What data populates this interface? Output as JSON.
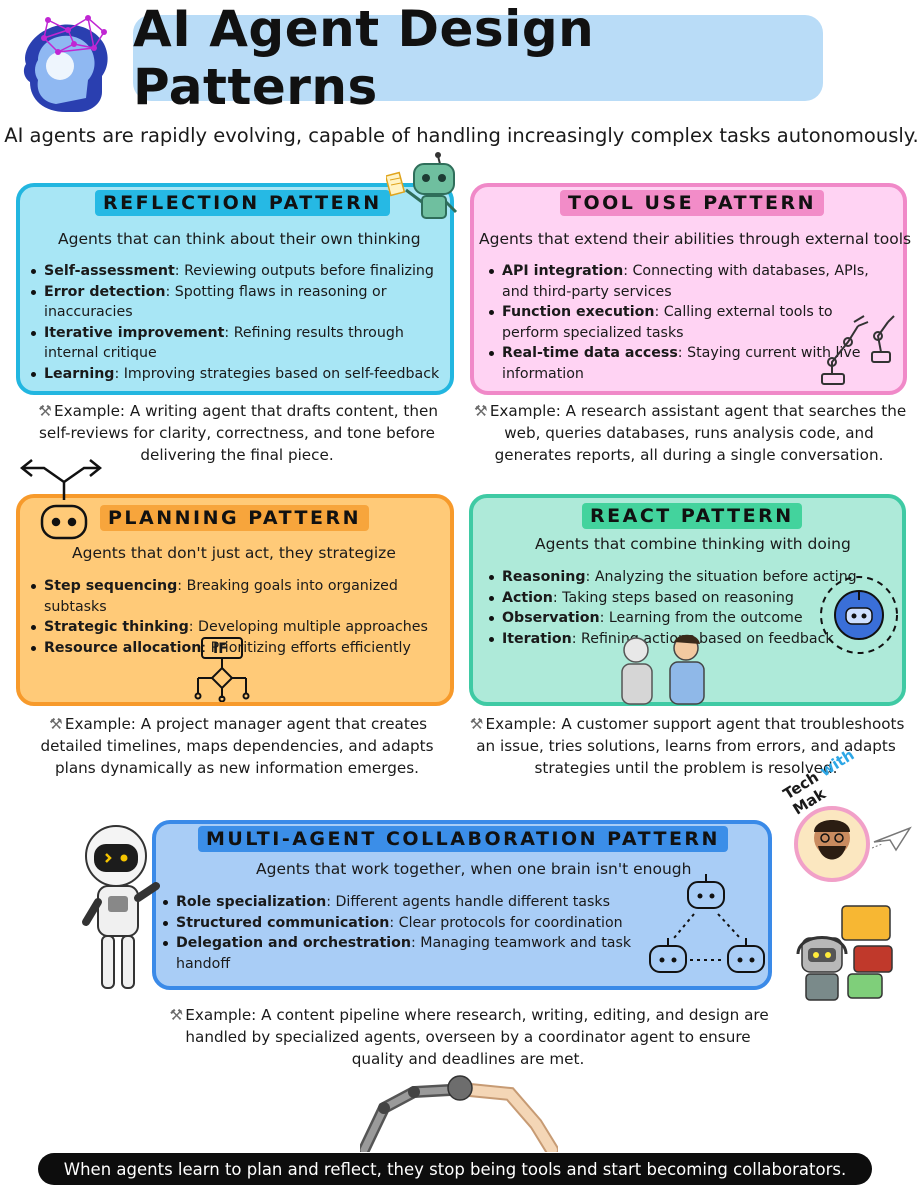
{
  "title": "AI Agent Design Patterns",
  "subtitle": "AI agents are rapidly evolving, capable of handling increasingly complex tasks autonomously.",
  "colors": {
    "title_bg": "#b9dcf7",
    "reflection": "#a8e6f5",
    "tool_use": "#ffd3f3",
    "planning": "#ffca78",
    "react": "#aeead9",
    "multi_agent": "#a9cdf6"
  },
  "reflection": {
    "label": "REFLECTION PATTERN",
    "tagline": "Agents that can think about their own thinking",
    "bullets": [
      {
        "term": "Self-assessment",
        "desc": ": Reviewing outputs before finalizing"
      },
      {
        "term": "Error detection",
        "desc": ": Spotting flaws in reasoning or inaccuracies"
      },
      {
        "term": "Iterative improvement",
        "desc": ": Refining results through internal critique"
      },
      {
        "term": "Learning",
        "desc": ": Improving strategies based on self-feedback"
      }
    ],
    "example": "Example: A writing agent that drafts content, then self-reviews for clarity, correctness, and tone before delivering the final piece."
  },
  "tool_use": {
    "label": "TOOL USE PATTERN",
    "tagline": "Agents that extend their abilities through external tools",
    "bullets": [
      {
        "term": "API integration",
        "desc": ": Connecting with databases, APIs, and third-party services"
      },
      {
        "term": "Function execution",
        "desc": ": Calling external tools to perform specialized tasks"
      },
      {
        "term": "Real-time data access",
        "desc": ": Staying current with live information"
      }
    ],
    "example": "Example: A research assistant agent that searches the web, queries databases, runs analysis code, and generates reports, all during a single conversation."
  },
  "planning": {
    "label": "PLANNING PATTERN",
    "tagline": "Agents that don't just act, they strategize",
    "bullets": [
      {
        "term": "Step sequencing",
        "desc": ": Breaking goals into organized subtasks"
      },
      {
        "term": "Strategic thinking",
        "desc": ": Developing multiple approaches"
      },
      {
        "term": "Resource allocation",
        "desc": ": Prioritizing efforts efficiently"
      }
    ],
    "if_label": "IF",
    "example": "Example: A project manager agent that creates detailed timelines, maps dependencies, and adapts plans dynamically as new information emerges."
  },
  "react": {
    "label": "REACT PATTERN",
    "tagline": "Agents that combine thinking with doing",
    "bullets": [
      {
        "term": "Reasoning",
        "desc": ": Analyzing the situation before acting"
      },
      {
        "term": "Action",
        "desc": ": Taking steps based on reasoning"
      },
      {
        "term": "Observation",
        "desc": ": Learning from the outcome"
      },
      {
        "term": "Iteration",
        "desc": ": Refining actions based on feedback"
      }
    ],
    "example": "Example: A customer support agent that troubleshoots an issue, tries solutions, learns from errors, and adapts strategies until the problem is resolved."
  },
  "multi_agent": {
    "label": "MULTI-AGENT COLLABORATION PATTERN",
    "tagline": "Agents that work together, when one brain isn't enough",
    "bullets": [
      {
        "term": "Role specialization",
        "desc": ": Different agents handle different tasks"
      },
      {
        "term": "Structured communication",
        "desc": ": Clear protocols for coordination"
      },
      {
        "term": "Delegation and orchestration",
        "desc": ": Managing teamwork and task handoff"
      }
    ],
    "example": "Example: A content pipeline where research, writing, editing, and design are handled by specialized agents, overseen by a coordinator agent to ensure quality and deadlines are met."
  },
  "brand": {
    "part1": "Tech",
    "part2": "with",
    "part3": "Mak"
  },
  "footer": "When agents learn to plan and reflect, they stop being tools and start becoming collaborators.",
  "icons": {
    "example": "hammer-wrench-icon",
    "head": "ai-head-icon",
    "robot": "robot-icon"
  }
}
